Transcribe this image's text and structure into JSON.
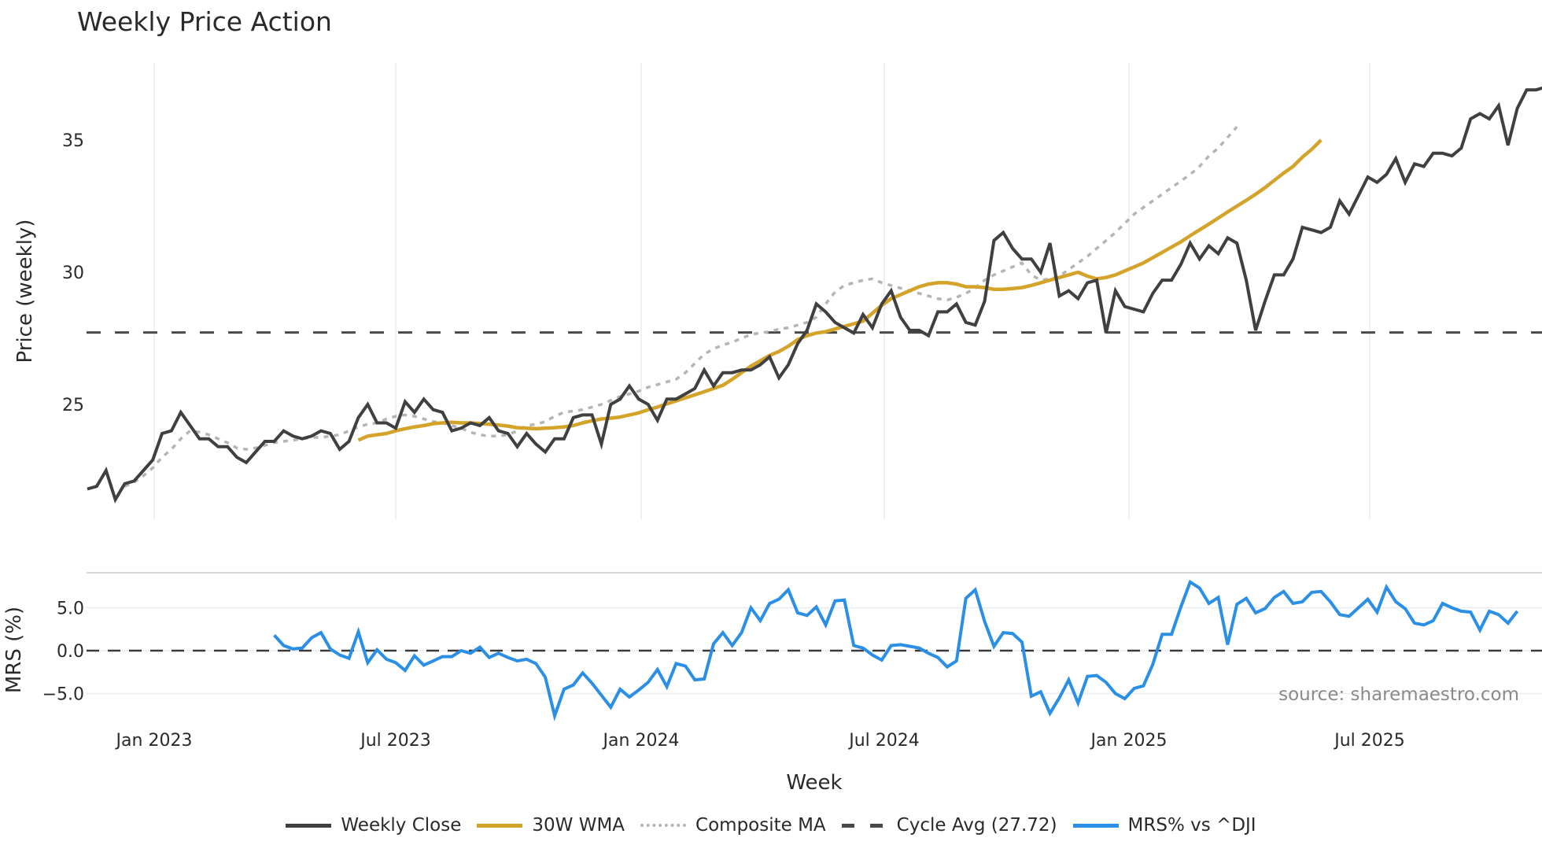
{
  "title": "Weekly Price Action",
  "source_note": "source: sharemaestro.com",
  "colors": {
    "weekly_close": "#404040",
    "wma30": "#d4a32a",
    "composite_ma": "#b5b5b5",
    "cycle_avg": "#4a4a4a",
    "mrs": "#2b8fe6",
    "grid": "#e8ecf0"
  },
  "legend": [
    {
      "label": "Weekly Close",
      "style": "solid",
      "color": "#404040"
    },
    {
      "label": "30W WMA",
      "style": "solid",
      "color": "#d4a32a"
    },
    {
      "label": "Composite MA",
      "style": "dotted",
      "color": "#b5b5b5"
    },
    {
      "label": "Cycle Avg (27.72)",
      "style": "dashed",
      "color": "#4a4a4a"
    },
    {
      "label": "MRS% vs ^DJI",
      "style": "solid",
      "color": "#2b8fe6"
    }
  ],
  "chart_data": [
    {
      "type": "line",
      "title": "Weekly Price Action",
      "xlabel": "Week",
      "ylabel": "Price (weekly)",
      "x_tick_labels": [
        "Jan 2023",
        "Jul 2023",
        "Jan 2024",
        "Jul 2024",
        "Jan 2025",
        "Jul 2025"
      ],
      "y_ticks": [
        25,
        30,
        35
      ],
      "ylim": [
        20.5,
        38.0
      ],
      "grid": true,
      "x_start": "2022-11-21",
      "x_step": "1 week",
      "reference_lines": [
        {
          "label": "Cycle Avg (27.72)",
          "value": 27.72,
          "style": "dashed"
        }
      ],
      "series": [
        {
          "name": "Weekly Close",
          "values": [
            21.8,
            21.9,
            22.5,
            21.4,
            22.0,
            22.1,
            22.5,
            22.9,
            23.9,
            24.0,
            24.7,
            24.2,
            23.7,
            23.7,
            23.4,
            23.4,
            23.0,
            22.8,
            23.2,
            23.6,
            23.6,
            24.0,
            23.8,
            23.7,
            23.8,
            24.0,
            23.9,
            23.3,
            23.6,
            24.5,
            25.0,
            24.3,
            24.3,
            24.1,
            25.1,
            24.7,
            25.2,
            24.8,
            24.7,
            24.0,
            24.1,
            24.3,
            24.2,
            24.5,
            24.0,
            23.9,
            23.4,
            23.9,
            23.5,
            23.2,
            23.7,
            23.7,
            24.5,
            24.6,
            24.6,
            23.5,
            25.0,
            25.2,
            25.7,
            25.2,
            25.0,
            24.4,
            25.2,
            25.2,
            25.4,
            25.6,
            26.3,
            25.7,
            26.2,
            26.2,
            26.3,
            26.3,
            26.5,
            26.8,
            26.0,
            26.5,
            27.3,
            27.8,
            28.8,
            28.5,
            28.1,
            27.9,
            27.7,
            28.4,
            27.9,
            28.8,
            29.3,
            28.3,
            27.8,
            27.8,
            27.6,
            28.5,
            28.5,
            28.8,
            28.1,
            28.0,
            28.9,
            31.2,
            31.5,
            30.9,
            30.5,
            30.5,
            30.0,
            31.1,
            29.1,
            29.3,
            29.0,
            29.6,
            29.7,
            27.7,
            29.3,
            28.7,
            28.6,
            28.5,
            29.2,
            29.7,
            29.7,
            30.3,
            31.1,
            30.5,
            31.0,
            30.7,
            31.3,
            31.1,
            29.7,
            27.8,
            28.9,
            29.9,
            29.9,
            30.5,
            31.7,
            31.6,
            31.5,
            31.7,
            32.7,
            32.2,
            32.9,
            33.6,
            33.4,
            33.7,
            34.3,
            33.4,
            34.1,
            34.0,
            34.5,
            34.5,
            34.4,
            34.7,
            35.8,
            36.0,
            35.8,
            36.3,
            34.8,
            36.2,
            36.9,
            36.9,
            37.0
          ]
        },
        {
          "name": "30W WMA",
          "start_index": 29,
          "values": [
            23.65,
            23.8,
            23.85,
            23.9,
            24.0,
            24.08,
            24.15,
            24.2,
            24.27,
            24.3,
            24.32,
            24.3,
            24.3,
            24.28,
            24.25,
            24.22,
            24.18,
            24.12,
            24.1,
            24.08,
            24.1,
            24.12,
            24.15,
            24.2,
            24.3,
            24.38,
            24.45,
            24.48,
            24.52,
            24.6,
            24.68,
            24.8,
            24.9,
            25.02,
            25.13,
            25.25,
            25.36,
            25.48,
            25.6,
            25.72,
            25.95,
            26.2,
            26.45,
            26.65,
            26.85,
            27.0,
            27.2,
            27.45,
            27.6,
            27.7,
            27.75,
            27.85,
            27.95,
            28.05,
            28.15,
            28.45,
            28.75,
            29.0,
            29.15,
            29.3,
            29.45,
            29.55,
            29.6,
            29.6,
            29.55,
            29.45,
            29.45,
            29.42,
            29.35,
            29.35,
            29.38,
            29.42,
            29.5,
            29.6,
            29.7,
            29.8,
            29.9,
            30.0,
            29.85,
            29.75,
            29.8,
            29.9,
            30.05,
            30.2,
            30.35,
            30.55,
            30.75,
            30.95,
            31.15,
            31.38,
            31.6,
            31.82,
            32.05,
            32.28,
            32.5,
            32.72,
            32.95,
            33.2,
            33.48,
            33.75,
            34.0,
            34.35,
            34.65,
            35.0
          ]
        },
        {
          "name": "Composite MA",
          "start_index": 4,
          "values": [
            21.9,
            22.05,
            22.3,
            22.6,
            23.0,
            23.3,
            23.7,
            24.0,
            23.95,
            23.85,
            23.7,
            23.55,
            23.35,
            23.3,
            23.35,
            23.45,
            23.55,
            23.6,
            23.65,
            23.7,
            23.75,
            23.75,
            23.8,
            23.85,
            24.0,
            24.15,
            24.25,
            24.3,
            24.45,
            24.55,
            24.6,
            24.55,
            24.45,
            24.35,
            24.3,
            24.2,
            24.1,
            23.95,
            23.85,
            23.8,
            23.8,
            23.85,
            24.0,
            24.2,
            24.25,
            24.35,
            24.55,
            24.7,
            24.75,
            24.8,
            24.9,
            25.0,
            25.15,
            25.3,
            25.4,
            25.5,
            25.65,
            25.75,
            25.85,
            25.95,
            26.2,
            26.55,
            26.9,
            27.1,
            27.25,
            27.35,
            27.5,
            27.65,
            27.7,
            27.75,
            27.85,
            27.9,
            28.0,
            28.1,
            28.3,
            28.8,
            29.25,
            29.5,
            29.6,
            29.7,
            29.75,
            29.6,
            29.5,
            29.4,
            29.3,
            29.2,
            29.1,
            29.0,
            28.95,
            29.05,
            29.2,
            29.4,
            29.7,
            29.9,
            30.05,
            30.2,
            30.35,
            29.9,
            29.7,
            29.75,
            29.85,
            30.1,
            30.35,
            30.6,
            30.9,
            31.2,
            31.5,
            31.85,
            32.2,
            32.45,
            32.7,
            32.95,
            33.2,
            33.45,
            33.7,
            34.0,
            34.4,
            34.7,
            35.1,
            35.5
          ]
        }
      ]
    },
    {
      "type": "line",
      "ylabel": "MRS (%)",
      "xlabel": "Week",
      "y_tick_labels": [
        "5.0",
        "0.0",
        "−5.0"
      ],
      "y_ticks": [
        5.0,
        0.0,
        -5.0
      ],
      "ylim": [
        -8.5,
        9.0
      ],
      "grid": true,
      "reference_lines": [
        {
          "value": 0.0,
          "style": "dashed"
        }
      ],
      "series": [
        {
          "name": "MRS% vs ^DJI",
          "start_index": 20,
          "values": [
            1.8,
            0.6,
            0.2,
            0.3,
            1.5,
            2.1,
            0.2,
            -0.5,
            -0.9,
            2.2,
            -1.4,
            0.1,
            -1.0,
            -1.4,
            -2.3,
            -0.6,
            -1.7,
            -1.2,
            -0.7,
            -0.7,
            0.0,
            -0.3,
            0.4,
            -0.8,
            -0.3,
            -0.8,
            -1.2,
            -1.0,
            -1.5,
            -3.1,
            -7.6,
            -4.5,
            -4.0,
            -2.6,
            -3.8,
            -5.2,
            -6.6,
            -4.5,
            -5.4,
            -4.6,
            -3.7,
            -2.2,
            -4.2,
            -1.5,
            -1.8,
            -3.4,
            -3.3,
            0.8,
            2.1,
            0.6,
            2.1,
            5.0,
            3.5,
            5.5,
            6.0,
            7.1,
            4.4,
            4.1,
            5.1,
            3.0,
            5.8,
            5.9,
            0.6,
            0.3,
            -0.5,
            -1.1,
            0.6,
            0.7,
            0.5,
            0.3,
            -0.3,
            -0.8,
            -1.9,
            -1.2,
            6.1,
            7.1,
            3.4,
            0.5,
            2.1,
            2.0,
            1.0,
            -5.3,
            -4.8,
            -7.3,
            -5.5,
            -3.4,
            -6.1,
            -3.0,
            -2.9,
            -3.7,
            -5.0,
            -5.6,
            -4.4,
            -4.1,
            -1.6,
            1.9,
            1.9,
            5.1,
            8.0,
            7.3,
            5.5,
            6.2,
            0.7,
            5.4,
            6.1,
            4.4,
            4.9,
            6.2,
            6.9,
            5.5,
            5.7,
            6.8,
            6.9,
            5.7,
            4.2,
            4.0,
            5.0,
            6.0,
            4.5,
            7.4,
            5.7,
            4.9,
            3.2,
            3.0,
            3.5,
            5.5,
            5.0,
            4.6,
            4.5,
            2.4,
            4.6,
            4.2,
            3.2,
            4.6
          ]
        }
      ]
    }
  ]
}
